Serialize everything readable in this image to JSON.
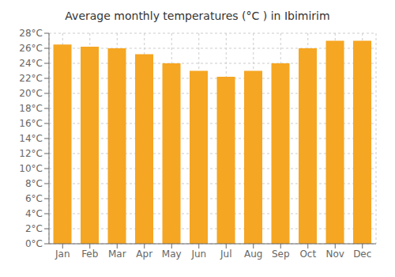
{
  "chart_data": {
    "type": "bar",
    "title": "Average monthly temperatures (°C ) in Ibimirim",
    "categories": [
      "Jan",
      "Feb",
      "Mar",
      "Apr",
      "May",
      "Jun",
      "Jul",
      "Aug",
      "Sep",
      "Oct",
      "Nov",
      "Dec"
    ],
    "values": [
      26.5,
      26.2,
      26.0,
      25.2,
      24.0,
      23.0,
      22.2,
      23.0,
      24.0,
      26.0,
      27.0,
      27.0
    ],
    "color": "#F5A623",
    "ylim": [
      0,
      28
    ],
    "yticks": [
      {
        "value": 0,
        "label": "0°C"
      },
      {
        "value": 2,
        "label": "2°C"
      },
      {
        "value": 4,
        "label": "4°C"
      },
      {
        "value": 6,
        "label": "6°C"
      },
      {
        "value": 8,
        "label": "8°C"
      },
      {
        "value": 10,
        "label": "10°C"
      },
      {
        "value": 12,
        "label": "12°C"
      },
      {
        "value": 14,
        "label": "14°C"
      },
      {
        "value": 16,
        "label": "16°C"
      },
      {
        "value": 18,
        "label": "18°C"
      },
      {
        "value": 20,
        "label": "20°C"
      },
      {
        "value": 22,
        "label": "22°C"
      },
      {
        "value": 24,
        "label": "24°C"
      },
      {
        "value": 26,
        "label": "26°C"
      },
      {
        "value": 28,
        "label": "28°C"
      }
    ],
    "grid": true
  }
}
